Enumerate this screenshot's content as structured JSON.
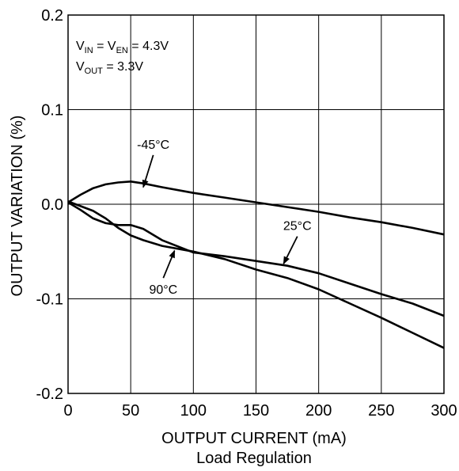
{
  "chart_data": {
    "type": "line",
    "title": "",
    "caption": "Load Regulation",
    "xlabel": "OUTPUT CURRENT (mA)",
    "ylabel": "OUTPUT VARIATION (%)",
    "xlim": [
      0,
      300
    ],
    "ylim": [
      -0.2,
      0.2
    ],
    "xticks": [
      0,
      50,
      100,
      150,
      200,
      250,
      300
    ],
    "xtick_labels": [
      "0",
      "50",
      "100",
      "150",
      "200",
      "250",
      "300"
    ],
    "yticks": [
      0.2,
      0.1,
      0.0,
      -0.1,
      -0.2
    ],
    "ytick_labels": [
      "0.2",
      "0.1",
      "0.0",
      "-0.1",
      "-0.2"
    ],
    "grid": true,
    "conditions": {
      "line1": {
        "v1": "V",
        "s1": "IN",
        "eq1": " = ",
        "v2": "V",
        "s2": "EN",
        "eq2": " = 4.3V"
      },
      "line2": {
        "v1": "V",
        "s1": "OUT",
        "eq1": " = 3.3V"
      }
    },
    "series": [
      {
        "name": "-45°C",
        "x": [
          0,
          10,
          20,
          30,
          40,
          50,
          60,
          75,
          100,
          125,
          150,
          175,
          200,
          225,
          250,
          275,
          300
        ],
        "y": [
          0.002,
          0.01,
          0.017,
          0.021,
          0.023,
          0.024,
          0.022,
          0.018,
          0.012,
          0.007,
          0.002,
          -0.003,
          -0.008,
          -0.014,
          -0.019,
          -0.025,
          -0.032
        ]
      },
      {
        "name": "25°C",
        "x": [
          0,
          10,
          20,
          30,
          40,
          50,
          60,
          75,
          100,
          125,
          150,
          175,
          200,
          225,
          250,
          275,
          300
        ],
        "y": [
          0.002,
          -0.006,
          -0.015,
          -0.02,
          -0.022,
          -0.022,
          -0.026,
          -0.038,
          -0.051,
          -0.055,
          -0.06,
          -0.065,
          -0.073,
          -0.084,
          -0.095,
          -0.105,
          -0.118
        ]
      },
      {
        "name": "90°C",
        "x": [
          0,
          10,
          20,
          30,
          40,
          50,
          60,
          75,
          100,
          125,
          150,
          175,
          200,
          225,
          250,
          275,
          300
        ],
        "y": [
          0.003,
          -0.002,
          -0.007,
          -0.015,
          -0.025,
          -0.033,
          -0.038,
          -0.044,
          -0.05,
          -0.058,
          -0.069,
          -0.078,
          -0.09,
          -0.105,
          -0.12,
          -0.136,
          -0.152
        ]
      }
    ],
    "annotations": [
      {
        "label": "-45°C",
        "at_x": 60,
        "at_y": 0.018,
        "from_x": 68,
        "from_y": 0.052
      },
      {
        "label": "25°C",
        "at_x": 172,
        "at_y": -0.063,
        "from_x": 183,
        "from_y": -0.034
      },
      {
        "label": "90°C",
        "at_x": 85,
        "at_y": -0.049,
        "from_x": 76,
        "from_y": -0.078
      }
    ]
  }
}
